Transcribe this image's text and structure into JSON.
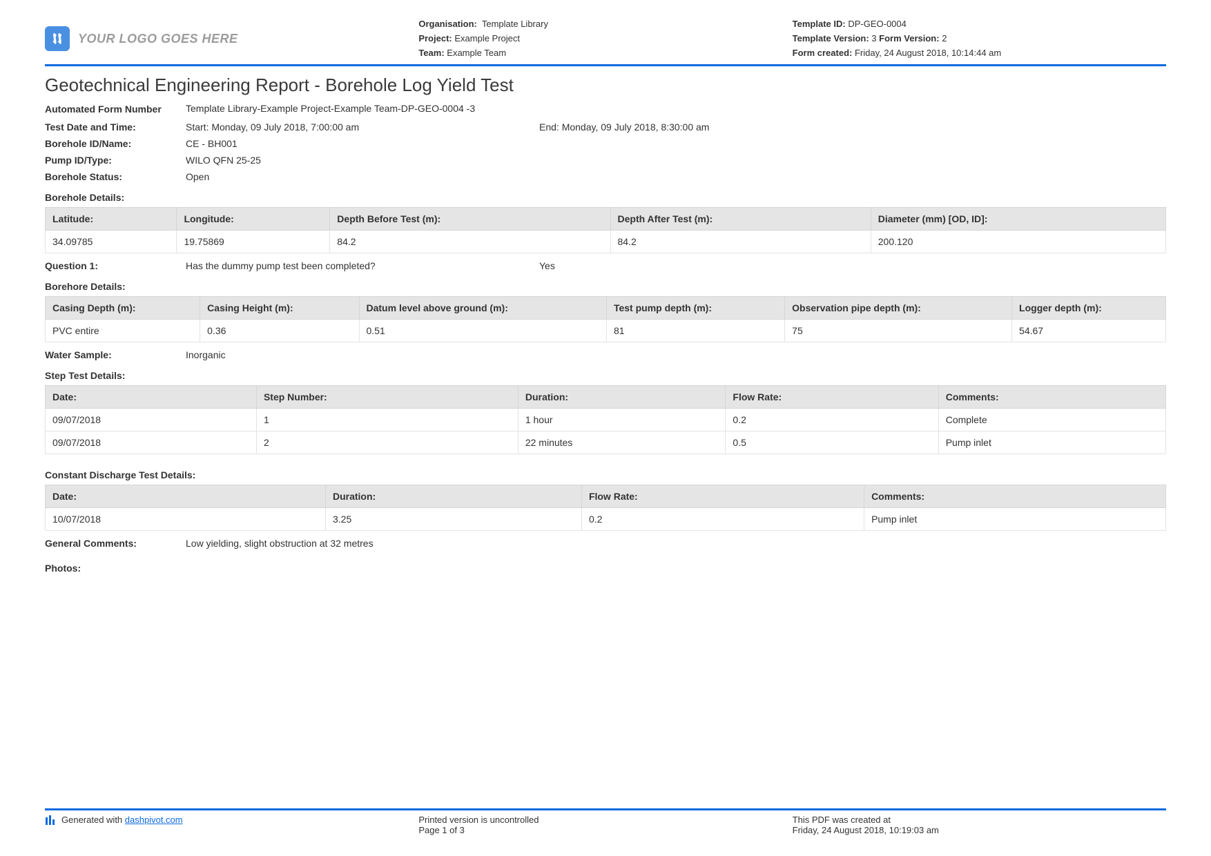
{
  "colors": {
    "accent": "#0d6ae0",
    "logoBg": "#4a90e2",
    "tableHeaderBg": "#e5e5e5",
    "border": "#d6d6d6",
    "text": "#333333",
    "logoText": "#9c9c9c"
  },
  "header": {
    "logoText": "YOUR LOGO GOES HERE",
    "orgLabel": "Organisation:",
    "orgValue": "Template Library",
    "projectLabel": "Project:",
    "projectValue": "Example Project",
    "teamLabel": "Team:",
    "teamValue": "Example Team",
    "tmplIdLabel": "Template ID:",
    "tmplIdValue": "DP-GEO-0004",
    "tmplVerLabel": "Template Version:",
    "tmplVerValue": "3",
    "formVerLabel": "Form Version:",
    "formVerValue": "2",
    "formCreatedLabel": "Form created:",
    "formCreatedValue": "Friday, 24 August 2018, 10:14:44 am"
  },
  "title": "Geotechnical Engineering Report - Borehole Log Yield Test",
  "meta": {
    "formNumberLabel": "Automated Form Number",
    "formNumberValue": "Template Library-Example Project-Example Team-DP-GEO-0004   -3",
    "testDateLabel": "Test Date and Time:",
    "testStart": "Start: Monday, 09 July 2018, 7:00:00 am",
    "testEnd": "End: Monday, 09 July 2018, 8:30:00 am",
    "boreholeIdLabel": "Borehole ID/Name:",
    "boreholeIdValue": "CE - BH001",
    "pumpLabel": "Pump ID/Type:",
    "pumpValue": "WILO QFN 25-25",
    "statusLabel": "Borehole Status:",
    "statusValue": "Open"
  },
  "boreholeDetails": {
    "title": "Borehole Details:",
    "columns": [
      "Latitude:",
      "Longitude:",
      "Depth Before Test (m):",
      "Depth After Test (m):",
      "Diameter (mm) [OD, ID]:"
    ],
    "rows": [
      [
        "34.09785",
        "19.75869",
        "84.2",
        "84.2",
        "200.120"
      ]
    ],
    "colWidthsPct": [
      16,
      16,
      14,
      14,
      14
    ]
  },
  "question1": {
    "label": "Question 1:",
    "text": "Has the dummy pump test been completed?",
    "answer": "Yes"
  },
  "borehoreDetails": {
    "title": "Borehore Details:",
    "columns": [
      "Casing Depth (m):",
      "Casing Height (m):",
      "Datum level above ground (m):",
      "Test pump depth (m):",
      "Observation pipe depth (m):",
      "Logger depth (m):"
    ],
    "rows": [
      [
        "PVC entire",
        "0.36",
        "0.51",
        "81",
        "75",
        "54.67"
      ]
    ]
  },
  "waterSample": {
    "label": "Water Sample:",
    "value": "Inorganic"
  },
  "stepTest": {
    "title": "Step Test Details:",
    "columns": [
      "Date:",
      "Step Number:",
      "Duration:",
      "Flow Rate:",
      "Comments:"
    ],
    "rows": [
      [
        "09/07/2018",
        "1",
        "1 hour",
        "0.2",
        "Complete"
      ],
      [
        "09/07/2018",
        "2",
        "22 minutes",
        "0.5",
        "Pump inlet"
      ]
    ]
  },
  "constantDischarge": {
    "title": "Constant Discharge Test Details:",
    "columns": [
      "Date:",
      "Duration:",
      "Flow Rate:",
      "Comments:"
    ],
    "rows": [
      [
        "10/07/2018",
        "3.25",
        "0.2",
        "Pump inlet"
      ]
    ]
  },
  "generalComments": {
    "label": "General Comments:",
    "value": "Low yielding, slight obstruction at 32 metres"
  },
  "photos": {
    "label": "Photos:"
  },
  "footer": {
    "generatedPrefix": "Generated with ",
    "generatedLink": "dashpivot.com",
    "printed": "Printed version is uncontrolled",
    "page": "Page 1 of 3",
    "createdAt": "This PDF was created at",
    "createdTime": "Friday, 24 August 2018, 10:19:03 am"
  }
}
